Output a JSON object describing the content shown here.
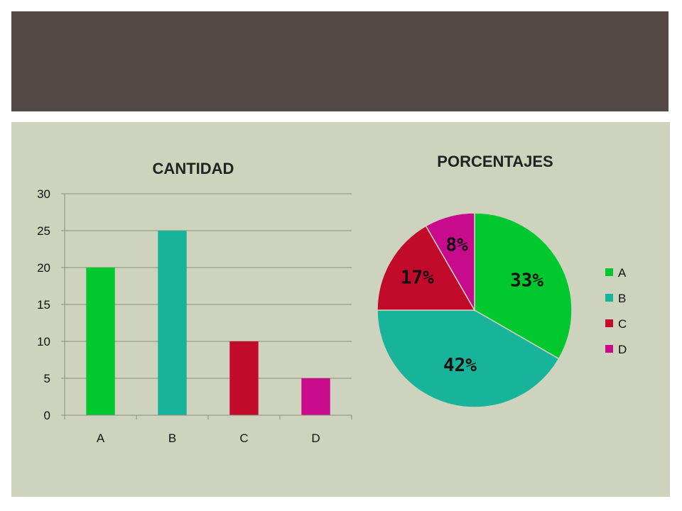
{
  "colors": {
    "header": "#534a48",
    "background": "#cdd3bd",
    "A": "#00c82e",
    "B": "#17b39a",
    "C": "#c20a2a",
    "D": "#c80b8c"
  },
  "chart_data": [
    {
      "type": "bar",
      "title": "CANTIDAD",
      "categories": [
        "A",
        "B",
        "C",
        "D"
      ],
      "values": [
        20,
        25,
        10,
        5
      ],
      "ylim": [
        0,
        30
      ],
      "yticks": [
        "0",
        "5",
        "10",
        "15",
        "20",
        "25",
        "30"
      ],
      "grid": true
    },
    {
      "type": "pie",
      "title": "PORCENTAJES",
      "categories": [
        "A",
        "B",
        "C",
        "D"
      ],
      "values": [
        20,
        25,
        10,
        5
      ],
      "labels": [
        "33%",
        "42%",
        "17%",
        "8%"
      ],
      "legend": "right"
    }
  ]
}
